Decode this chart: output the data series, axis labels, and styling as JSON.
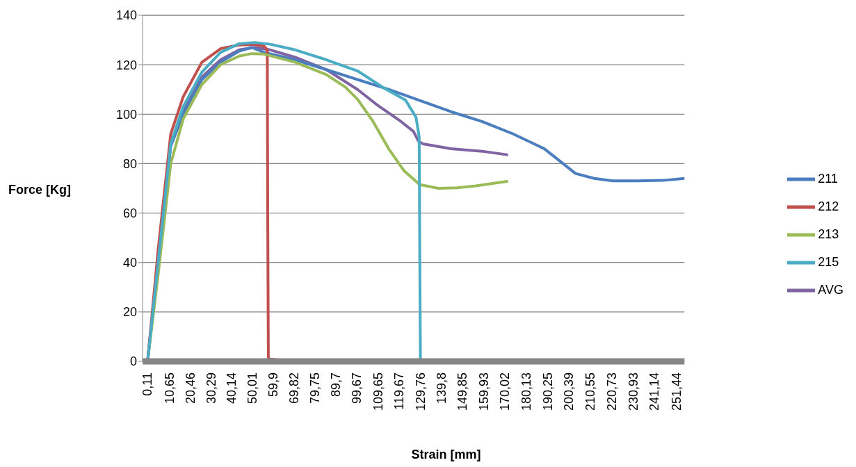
{
  "chart_data": {
    "type": "line",
    "xlabel": "Strain [mm]",
    "ylabel": "Force [Kg]",
    "xlim": [
      -2.3,
      255.3
    ],
    "ylim": [
      0,
      140
    ],
    "xticks": [
      {
        "value": 0.11,
        "label": "0,11"
      },
      {
        "value": 10.65,
        "label": "10,65"
      },
      {
        "value": 20.46,
        "label": "20,46"
      },
      {
        "value": 30.29,
        "label": "30,29"
      },
      {
        "value": 40.14,
        "label": "40,14"
      },
      {
        "value": 50.01,
        "label": "50,01"
      },
      {
        "value": 59.9,
        "label": "59,9"
      },
      {
        "value": 69.82,
        "label": "69,82"
      },
      {
        "value": 79.75,
        "label": "79,75"
      },
      {
        "value": 89.7,
        "label": "89,7"
      },
      {
        "value": 99.67,
        "label": "99,67"
      },
      {
        "value": 109.65,
        "label": "109,65"
      },
      {
        "value": 119.67,
        "label": "119,67"
      },
      {
        "value": 129.76,
        "label": "129,76"
      },
      {
        "value": 139.8,
        "label": "139,8"
      },
      {
        "value": 149.85,
        "label": "149,85"
      },
      {
        "value": 159.93,
        "label": "159,93"
      },
      {
        "value": 170.02,
        "label": "170,02"
      },
      {
        "value": 180.13,
        "label": "180,13"
      },
      {
        "value": 190.25,
        "label": "190,25"
      },
      {
        "value": 200.39,
        "label": "200,39"
      },
      {
        "value": 210.55,
        "label": "210,55"
      },
      {
        "value": 220.73,
        "label": "220,73"
      },
      {
        "value": 230.93,
        "label": "230,93"
      },
      {
        "value": 241.14,
        "label": "241,14"
      },
      {
        "value": 251.44,
        "label": "251,44"
      }
    ],
    "yticks": [
      0,
      20,
      40,
      60,
      80,
      100,
      120,
      140
    ],
    "grid": "y",
    "legend": "right",
    "marker": "none",
    "series": [
      {
        "name": "AVG",
        "color": "#7f63a2",
        "x": [
          0.1,
          5.1,
          11.1,
          17.0,
          25.9,
          34.8,
          43.6,
          51.0,
          58.4,
          70.3,
          85.1,
          99.9,
          108.8,
          120.6,
          126.5,
          128.9,
          131.0,
          144.3,
          159.1,
          170.9
        ],
        "values": [
          0,
          40,
          88,
          102,
          115,
          122,
          126,
          127,
          126,
          123,
          118,
          110,
          104,
          97,
          93,
          89,
          88,
          86,
          85,
          83.6
        ]
      },
      {
        "name": "211",
        "color": "#4a7ebf",
        "x": [
          0.1,
          5.1,
          11.1,
          17.0,
          25.9,
          34.8,
          43.6,
          49.5,
          55.5,
          70.3,
          85.1,
          99.9,
          114.7,
          129.5,
          144.3,
          159.1,
          173.9,
          188.7,
          197.6,
          203.5,
          212.4,
          221.2,
          233.1,
          244.9,
          255.3
        ],
        "values": [
          0,
          39,
          87,
          100,
          114,
          121,
          125.5,
          127,
          125,
          122,
          118,
          114,
          110,
          105.5,
          101,
          97,
          92,
          86,
          80,
          76,
          74,
          73,
          73,
          73.2,
          74
        ]
      },
      {
        "name": "212",
        "color": "#c0504d",
        "x": [
          0.1,
          5.1,
          11.1,
          17.0,
          25.9,
          34.8,
          43.6,
          51.0,
          55.5,
          57.0,
          57.2,
          57.5,
          62.9
        ],
        "values": [
          0,
          45,
          92,
          107,
          121,
          126.5,
          128,
          128.2,
          127.5,
          126,
          60,
          1,
          0.5
        ]
      },
      {
        "name": "213",
        "color": "#9bbb59",
        "x": [
          0.1,
          5.1,
          11.1,
          17.0,
          25.9,
          34.8,
          43.6,
          49.5,
          55.5,
          70.3,
          85.1,
          94.0,
          99.9,
          107.3,
          114.7,
          122.1,
          129.5,
          138.4,
          147.2,
          156.1,
          170.9
        ],
        "values": [
          0,
          35,
          80,
          98,
          112,
          120,
          123.5,
          124.5,
          124.3,
          121,
          116,
          111,
          106,
          97,
          86,
          77,
          71.5,
          70,
          70.2,
          71,
          72.8
        ]
      },
      {
        "name": "215",
        "color": "#4bacc6",
        "x": [
          0.1,
          5.1,
          11.1,
          17.0,
          25.9,
          34.8,
          43.6,
          51.0,
          58.4,
          70.3,
          85.1,
          99.9,
          112.6,
          122.7,
          127.7,
          129.2,
          129.5,
          129.8,
          131.6
        ],
        "values": [
          0,
          40,
          88,
          103,
          117,
          125,
          128.5,
          129,
          128.3,
          126,
          122,
          117.5,
          110.5,
          105.7,
          98.7,
          90.8,
          40,
          0.5,
          0.5
        ]
      }
    ]
  }
}
